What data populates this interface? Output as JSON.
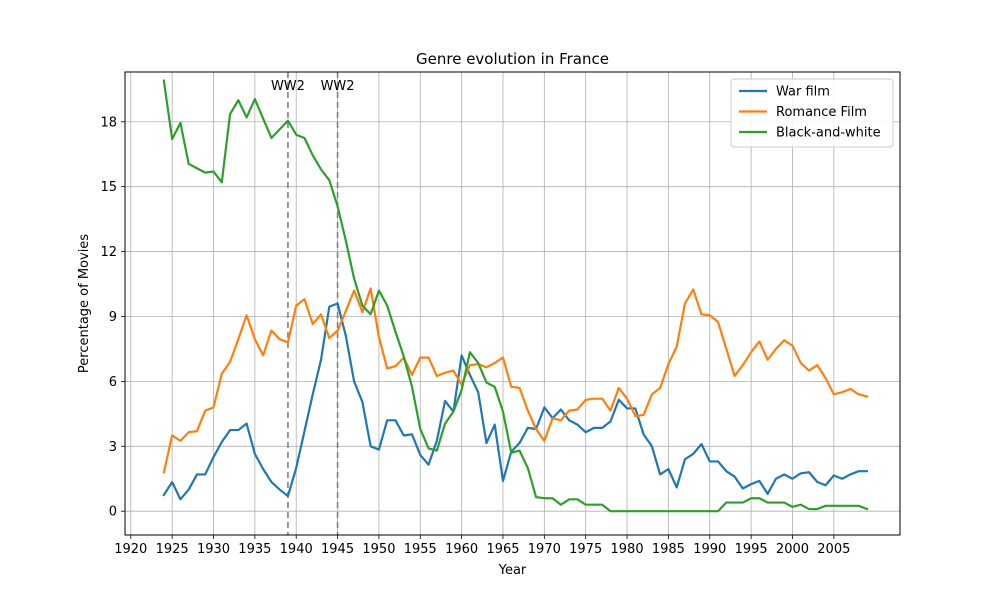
{
  "chart_data": {
    "type": "line",
    "title": "Genre evolution in France",
    "xlabel": "Year",
    "ylabel": "Percentage of Movies",
    "xlim": [
      1919.3,
      1913.0
    ],
    "ylim": [
      -1.1,
      20.3
    ],
    "x_ticks": [
      "1920",
      "1925",
      "1930",
      "1935",
      "1940",
      "1945",
      "1950",
      "1955",
      "1960",
      "1965",
      "1970",
      "1975",
      "1980",
      "1985",
      "1990",
      "1995",
      "2000",
      "2005"
    ],
    "y_ticks": [
      "0",
      "3",
      "6",
      "9",
      "12",
      "15",
      "18"
    ],
    "grid": true,
    "legend_position": "top-right",
    "annotations": [
      {
        "label": "WW2",
        "x": 1939
      },
      {
        "label": "WW2",
        "x": 1945
      }
    ],
    "series": [
      {
        "name": "War film",
        "color": "#1f77b4",
        "x": [
          1924,
          1925,
          1926,
          1927,
          1928,
          1929,
          1930,
          1931,
          1932,
          1933,
          1934,
          1935,
          1936,
          1937,
          1938,
          1939,
          1940,
          1941,
          1942,
          1943,
          1944,
          1945,
          1946,
          1947,
          1948,
          1949,
          1950,
          1951,
          1952,
          1953,
          1954,
          1955,
          1956,
          1957,
          1958,
          1959,
          1960,
          1961,
          1962,
          1963,
          1964,
          1965,
          1966,
          1967,
          1968,
          1969,
          1970,
          1971,
          1972,
          1973,
          1974,
          1975,
          1976,
          1977,
          1978,
          1979,
          1980,
          1981,
          1982,
          1983,
          1984,
          1985,
          1986,
          1987,
          1988,
          1989,
          1990,
          1991,
          1992,
          1993,
          1994,
          1995,
          1996,
          1997,
          1998,
          1999,
          2000,
          2001,
          2002,
          2003,
          2004,
          2005,
          2006,
          2007,
          2008,
          2009
        ],
        "values": [
          0.75,
          1.35,
          0.55,
          1.0,
          1.7,
          1.7,
          2.5,
          3.2,
          3.75,
          3.75,
          4.05,
          2.65,
          1.95,
          1.35,
          1.0,
          0.7,
          2.0,
          3.7,
          5.4,
          7.0,
          9.45,
          9.6,
          8.1,
          6.0,
          5.05,
          3.0,
          2.85,
          4.2,
          4.2,
          3.5,
          3.55,
          2.6,
          2.15,
          3.25,
          5.1,
          4.6,
          7.2,
          6.3,
          5.5,
          3.15,
          4.0,
          1.4,
          2.75,
          3.15,
          3.85,
          3.8,
          4.8,
          4.3,
          4.7,
          4.2,
          4.0,
          3.65,
          3.85,
          3.85,
          4.15,
          5.15,
          4.75,
          4.75,
          3.55,
          3.0,
          1.7,
          1.95,
          1.1,
          2.4,
          2.65,
          3.1,
          2.3,
          2.3,
          1.85,
          1.6,
          1.05,
          1.25,
          1.4,
          0.8,
          1.5,
          1.7,
          1.5,
          1.75,
          1.8,
          1.35,
          1.2,
          1.65,
          1.5,
          1.7,
          1.85,
          1.85
        ]
      },
      {
        "name": "Romance Film",
        "color": "#ff7f0e",
        "x": [
          1924,
          1925,
          1926,
          1927,
          1928,
          1929,
          1930,
          1931,
          1932,
          1933,
          1934,
          1935,
          1936,
          1937,
          1938,
          1939,
          1940,
          1941,
          1942,
          1943,
          1944,
          1945,
          1946,
          1947,
          1948,
          1949,
          1950,
          1951,
          1952,
          1953,
          1954,
          1955,
          1956,
          1957,
          1958,
          1959,
          1960,
          1961,
          1962,
          1963,
          1964,
          1965,
          1966,
          1967,
          1968,
          1969,
          1970,
          1971,
          1972,
          1973,
          1974,
          1975,
          1976,
          1977,
          1978,
          1979,
          1980,
          1981,
          1982,
          1983,
          1984,
          1985,
          1986,
          1987,
          1988,
          1989,
          1990,
          1991,
          1992,
          1993,
          1994,
          1995,
          1996,
          1997,
          1998,
          1999,
          2000,
          2001,
          2002,
          2003,
          2004,
          2005,
          2006,
          2007,
          2008,
          2009
        ],
        "values": [
          1.8,
          3.5,
          3.25,
          3.65,
          3.7,
          4.65,
          4.8,
          6.35,
          6.9,
          7.95,
          9.05,
          7.95,
          7.2,
          8.35,
          7.95,
          7.8,
          9.5,
          9.8,
          8.65,
          9.1,
          8.0,
          8.35,
          9.25,
          10.2,
          9.2,
          10.3,
          8.05,
          6.6,
          6.7,
          7.1,
          6.3,
          7.1,
          7.1,
          6.25,
          6.4,
          6.5,
          5.85,
          6.75,
          6.8,
          6.65,
          6.85,
          7.1,
          5.75,
          5.7,
          4.65,
          3.8,
          3.25,
          4.3,
          4.2,
          4.65,
          4.7,
          5.15,
          5.2,
          5.2,
          4.65,
          5.7,
          5.2,
          4.4,
          4.45,
          5.4,
          5.7,
          6.8,
          7.6,
          9.6,
          10.25,
          9.1,
          9.05,
          8.75,
          7.5,
          6.25,
          6.75,
          7.35,
          7.85,
          7.0,
          7.5,
          7.9,
          7.65,
          6.85,
          6.5,
          6.75,
          6.15,
          5.4,
          5.5,
          5.65,
          5.4,
          5.3
        ]
      },
      {
        "name": "Black-and-white",
        "color": "#2ca02c",
        "x": [
          1924,
          1925,
          1926,
          1927,
          1928,
          1929,
          1930,
          1931,
          1932,
          1933,
          1934,
          1935,
          1936,
          1937,
          1938,
          1939,
          1940,
          1941,
          1942,
          1943,
          1944,
          1945,
          1946,
          1947,
          1948,
          1949,
          1950,
          1951,
          1952,
          1953,
          1954,
          1955,
          1956,
          1957,
          1958,
          1959,
          1960,
          1961,
          1962,
          1963,
          1964,
          1965,
          1966,
          1967,
          1968,
          1969,
          1970,
          1971,
          1972,
          1973,
          1974,
          1975,
          1976,
          1977,
          1978,
          1979,
          1980,
          1981,
          1982,
          1983,
          1984,
          1985,
          1986,
          1987,
          1988,
          1989,
          1990,
          1991,
          1992,
          1993,
          1994,
          1995,
          1996,
          1997,
          1998,
          1999,
          2000,
          2001,
          2002,
          2003,
          2004,
          2005,
          2006,
          2007,
          2008,
          2009
        ],
        "values": [
          19.9,
          17.2,
          17.95,
          16.05,
          15.85,
          15.65,
          15.7,
          15.2,
          18.35,
          19.0,
          18.2,
          19.05,
          18.15,
          17.25,
          17.65,
          18.05,
          17.4,
          17.25,
          16.45,
          15.8,
          15.3,
          14.1,
          12.5,
          10.75,
          9.5,
          9.1,
          10.2,
          9.5,
          8.3,
          7.15,
          5.75,
          3.8,
          2.9,
          2.8,
          4.05,
          4.6,
          5.6,
          7.35,
          6.85,
          5.95,
          5.75,
          4.6,
          2.7,
          2.8,
          2.0,
          0.65,
          0.6,
          0.6,
          0.3,
          0.55,
          0.55,
          0.3,
          0.3,
          0.3,
          0.0,
          0.0,
          0.0,
          0.0,
          0.0,
          0.0,
          0.0,
          0.0,
          0.0,
          0.0,
          0.0,
          0.0,
          0.0,
          0.0,
          0.4,
          0.4,
          0.4,
          0.6,
          0.6,
          0.4,
          0.4,
          0.4,
          0.2,
          0.3,
          0.1,
          0.1,
          0.25,
          0.25,
          0.25,
          0.25,
          0.25,
          0.1
        ]
      }
    ]
  }
}
